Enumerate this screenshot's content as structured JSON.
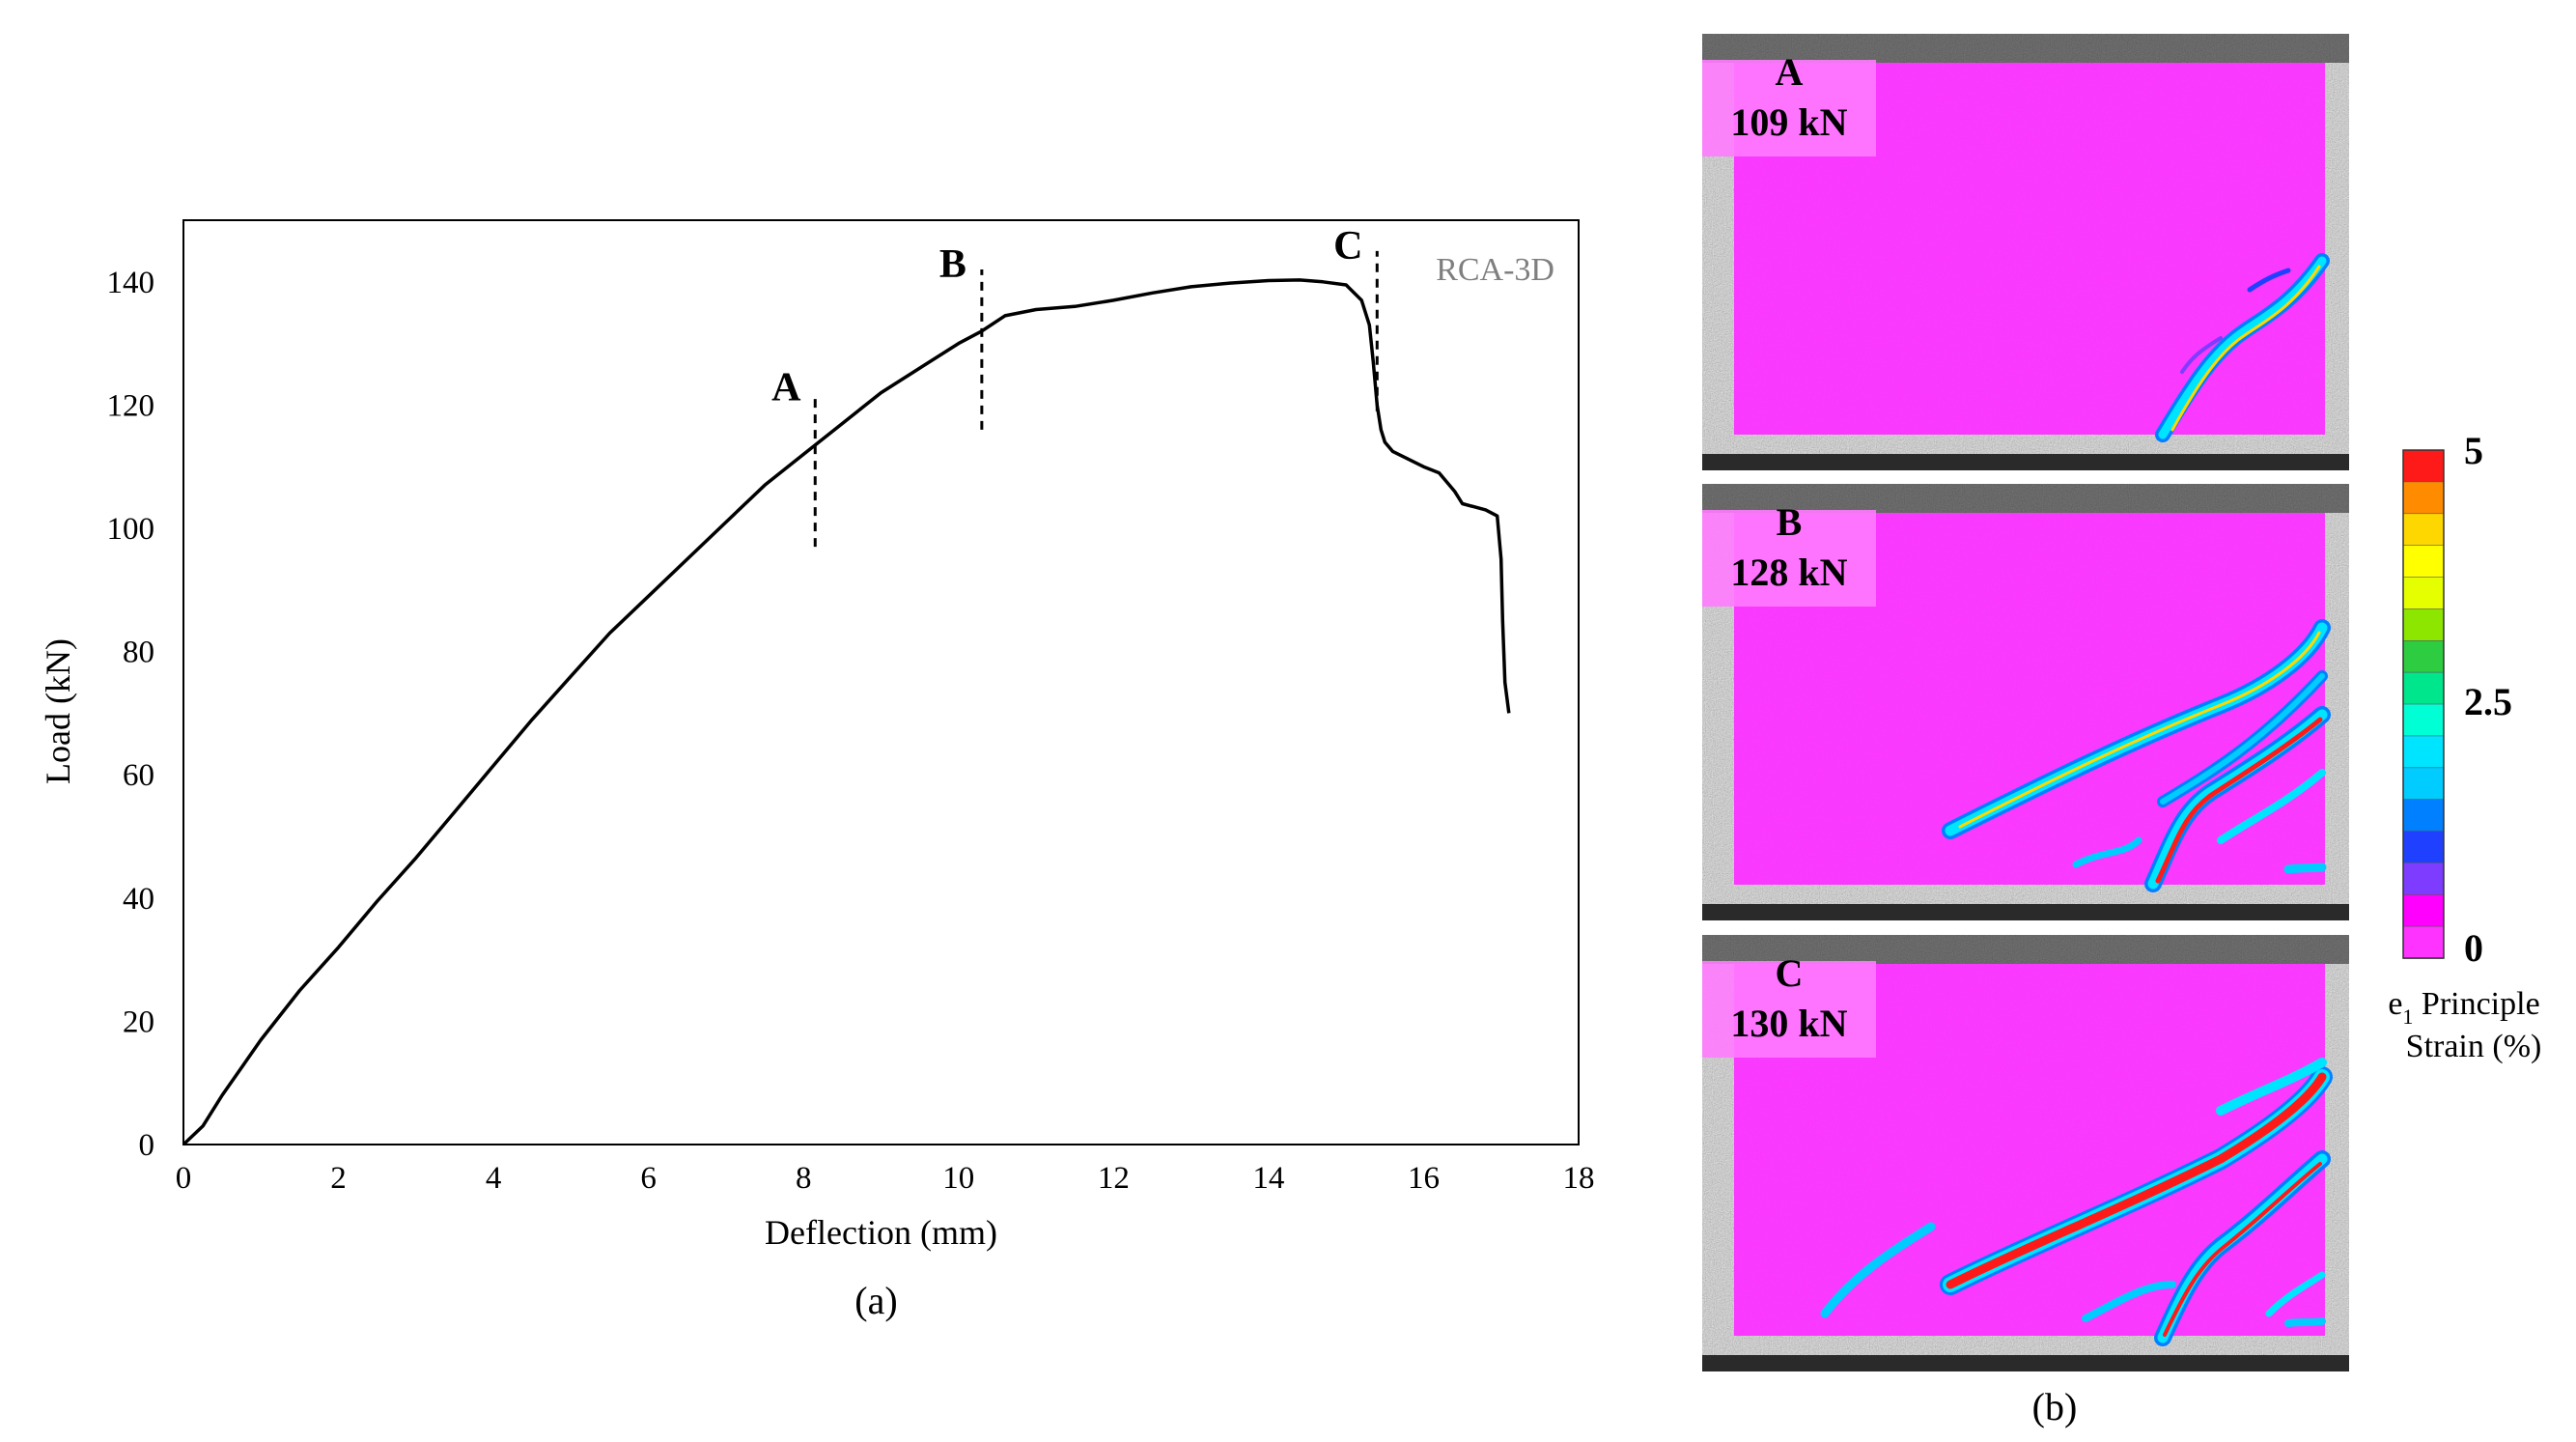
{
  "chart_data": [
    {
      "type": "line",
      "panel_caption": "(a)",
      "xlabel": "Deflection (mm)",
      "ylabel": "Load (kN)",
      "xlim": [
        0,
        18
      ],
      "ylim": [
        0,
        150
      ],
      "xticks": [
        0,
        2,
        4,
        6,
        8,
        10,
        12,
        14,
        16,
        18
      ],
      "yticks": [
        0,
        20,
        40,
        60,
        80,
        100,
        120,
        140
      ],
      "grid": false,
      "series": [
        {
          "name": "RCA-3D",
          "color": "#000000",
          "x": [
            0,
            0.25,
            0.5,
            1,
            1.5,
            2,
            2.5,
            3,
            3.5,
            4,
            4.5,
            5,
            5.5,
            6,
            6.5,
            7,
            7.5,
            8,
            8.5,
            9,
            9.5,
            10,
            10.3,
            10.6,
            11,
            11.5,
            12,
            12.5,
            13,
            13.5,
            14,
            14.4,
            14.7,
            15,
            15.2,
            15.3,
            15.35,
            15.4,
            15.45,
            15.5,
            15.6,
            16,
            16.2,
            16.4,
            16.5,
            16.8,
            16.95,
            17.0,
            17.02,
            17.05,
            17.1
          ],
          "y": [
            0,
            3,
            8,
            17,
            25,
            32,
            39.5,
            46.5,
            54,
            61.5,
            69,
            76,
            83,
            89,
            95,
            101,
            107,
            112,
            117,
            122,
            126,
            130,
            132,
            134.5,
            135.5,
            136,
            137,
            138.2,
            139.2,
            139.8,
            140.2,
            140.3,
            140.0,
            139.5,
            137,
            133,
            127,
            120,
            116,
            114,
            112.5,
            110,
            109,
            106,
            104,
            103,
            102,
            95,
            85,
            75,
            70
          ]
        }
      ],
      "vlines": [
        {
          "label": "A",
          "x": 8.15,
          "y_from": 97,
          "y_to": 122
        },
        {
          "label": "B",
          "x": 10.3,
          "y_from": 116,
          "y_to": 142
        },
        {
          "label": "C",
          "x": 15.4,
          "y_from": 119,
          "y_to": 145
        }
      ]
    },
    {
      "type": "heatmap",
      "panel_caption": "(b)",
      "panels": [
        {
          "label": "A",
          "load": "109 kN"
        },
        {
          "label": "B",
          "load": "128 kN"
        },
        {
          "label": "C",
          "load": "130 kN"
        }
      ],
      "colorbar": {
        "ticks": [
          "5",
          "2.5",
          "0"
        ],
        "title_main": "e",
        "title_sub": "1",
        "title_rest": " Principle",
        "title_line2": "Strain (%)",
        "colors_top_to_bottom": [
          "#ff1a1a",
          "#ff8c00",
          "#ffd700",
          "#ffff00",
          "#e6ff00",
          "#8ce600",
          "#2ecc40",
          "#00e68c",
          "#00ffd5",
          "#00e5ff",
          "#00ccff",
          "#0080ff",
          "#2040ff",
          "#7d3cff",
          "#ff00ff",
          "#ff33ff"
        ]
      }
    }
  ]
}
